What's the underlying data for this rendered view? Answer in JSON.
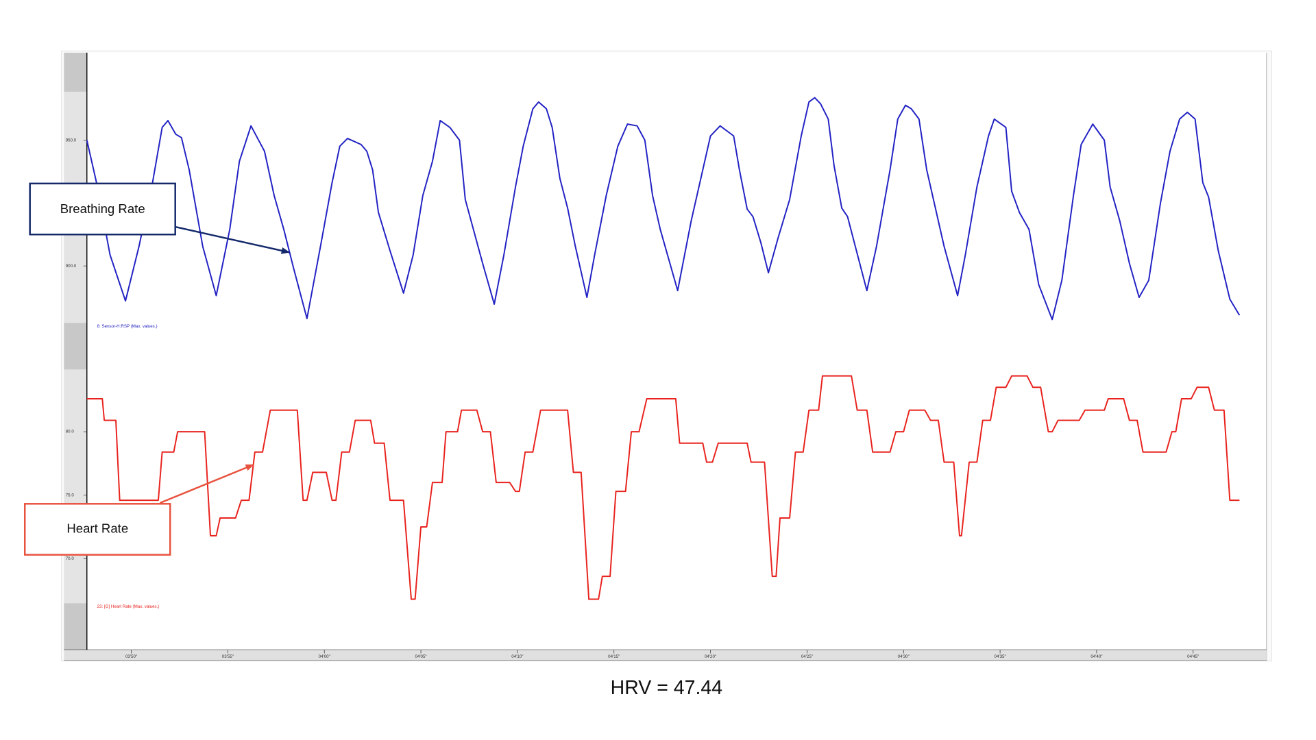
{
  "chart_data": [
    {
      "type": "line",
      "annotation": "Breathing Rate",
      "xlim": [
        227.7,
        288.8
      ],
      "ylim": [
        858.8,
        984.8
      ],
      "yticks": [
        {
          "value": 900,
          "label": "900.0"
        },
        {
          "value": 950,
          "label": "950.0"
        }
      ],
      "x": [
        227.7,
        228.2,
        228.9,
        229.7,
        230.4,
        231.1,
        231.6,
        231.9,
        232.3,
        232.6,
        233.0,
        233.7,
        234.4,
        235.1,
        235.6,
        236.2,
        236.9,
        237.4,
        237.9,
        238.4,
        239.1,
        239.8,
        240.4,
        240.8,
        241.2,
        241.9,
        242.2,
        242.5,
        242.8,
        243.4,
        244.1,
        244.6,
        245.1,
        245.6,
        246.0,
        246.5,
        247.0,
        247.3,
        248.2,
        248.8,
        249.3,
        249.9,
        250.3,
        250.8,
        251.1,
        251.5,
        251.8,
        252.2,
        252.6,
        253.0,
        253.6,
        254.0,
        254.6,
        255.2,
        255.7,
        256.2,
        256.6,
        257.0,
        257.4,
        257.9,
        258.3,
        259.0,
        259.5,
        260.0,
        260.5,
        261.2,
        261.5,
        261.9,
        262.2,
        262.6,
        263.0,
        263.5,
        264.1,
        264.7,
        265.1,
        265.4,
        265.7,
        266.1,
        266.4,
        266.8,
        267.1,
        267.5,
        268.1,
        268.6,
        269.3,
        269.7,
        270.1,
        270.4,
        270.8,
        271.2,
        271.6,
        272.1,
        272.8,
        273.2,
        273.8,
        274.4,
        274.7,
        275.3,
        275.6,
        276.0,
        276.5,
        277.0,
        277.7,
        278.2,
        278.8,
        279.2,
        279.8,
        280.4,
        280.7,
        281.2,
        281.7,
        282.2,
        282.7,
        283.3,
        283.8,
        284.3,
        284.7,
        285.1,
        285.5,
        285.8,
        286.3,
        286.9,
        287.4
      ],
      "series": [
        {
          "name": "8: Sensor-H:RSP (Max. values.)",
          "color": "#2222c4",
          "values": [
            950.0,
            933.1,
            904.4,
            886.1,
            907.8,
            933.1,
            955.1,
            957.8,
            952.4,
            951.0,
            938.2,
            907.8,
            888.2,
            914.5,
            941.6,
            955.7,
            945.6,
            928.0,
            914.5,
            899.3,
            879.1,
            907.8,
            933.1,
            947.6,
            950.7,
            948.3,
            945.6,
            938.2,
            921.3,
            906.1,
            889.2,
            904.4,
            928.0,
            941.6,
            957.8,
            955.1,
            950.0,
            926.4,
            901.0,
            884.8,
            904.4,
            931.4,
            947.6,
            962.5,
            965.2,
            962.5,
            955.1,
            934.8,
            923.0,
            907.8,
            887.5,
            904.4,
            928.0,
            947.6,
            956.4,
            955.7,
            950.0,
            928.0,
            914.5,
            901.0,
            890.2,
            917.9,
            934.8,
            951.7,
            955.7,
            951.7,
            938.2,
            922.6,
            919.6,
            909.5,
            897.3,
            911.1,
            926.4,
            951.7,
            965.2,
            966.9,
            964.5,
            958.4,
            939.9,
            923.0,
            919.6,
            907.8,
            890.2,
            907.8,
            938.2,
            958.4,
            963.9,
            962.5,
            958.4,
            938.2,
            924.7,
            907.8,
            888.2,
            904.4,
            931.4,
            951.7,
            958.4,
            955.1,
            929.7,
            921.3,
            914.5,
            892.6,
            878.7,
            894.3,
            928.0,
            948.3,
            956.4,
            950.0,
            931.4,
            917.9,
            901.0,
            887.5,
            894.3,
            924.7,
            945.6,
            958.4,
            961.1,
            958.4,
            933.1,
            927.4,
            906.1,
            886.8,
            880.4
          ]
        }
      ]
    },
    {
      "type": "line",
      "annotation": "Heart Rate",
      "xlim": [
        227.7,
        288.8
      ],
      "ylim": [
        62.8,
        84.9
      ],
      "yticks": [
        {
          "value": 70,
          "label": "70.0"
        },
        {
          "value": 75,
          "label": "75.0"
        },
        {
          "value": 80,
          "label": "80.0"
        }
      ],
      "xticks": [
        {
          "value": 230,
          "label": "03'50\""
        },
        {
          "value": 235,
          "label": "03'55\""
        },
        {
          "value": 240,
          "label": "04'00\""
        },
        {
          "value": 245,
          "label": "04'05\""
        },
        {
          "value": 250,
          "label": "04'10\""
        },
        {
          "value": 255,
          "label": "04'15\""
        },
        {
          "value": 260,
          "label": "04'20\""
        },
        {
          "value": 265,
          "label": "04'25\""
        },
        {
          "value": 270,
          "label": "04'30\""
        },
        {
          "value": 275,
          "label": "04'35\""
        },
        {
          "value": 280,
          "label": "04'40\""
        },
        {
          "value": 285,
          "label": "04'45\""
        }
      ],
      "x": [
        227.7,
        228.5,
        228.6,
        229.2,
        229.4,
        231.4,
        231.6,
        232.2,
        232.4,
        233.8,
        234.1,
        234.4,
        234.6,
        235.4,
        235.7,
        236.1,
        236.4,
        236.8,
        237.2,
        238.6,
        238.9,
        239.1,
        239.4,
        240.1,
        240.4,
        240.6,
        240.9,
        241.3,
        241.6,
        242.4,
        242.6,
        243.1,
        243.4,
        244.1,
        244.5,
        244.7,
        245.0,
        245.3,
        245.6,
        246.1,
        246.3,
        246.9,
        247.1,
        247.9,
        248.2,
        248.6,
        248.9,
        249.6,
        249.9,
        250.1,
        250.4,
        250.8,
        251.2,
        252.6,
        252.9,
        253.3,
        253.7,
        254.2,
        254.4,
        254.8,
        255.1,
        255.6,
        255.9,
        256.3,
        256.7,
        258.2,
        258.4,
        259.6,
        259.8,
        260.1,
        260.4,
        261.9,
        262.1,
        262.8,
        263.2,
        263.4,
        263.6,
        264.1,
        264.4,
        264.8,
        265.1,
        265.6,
        265.8,
        267.3,
        267.6,
        268.1,
        268.4,
        269.3,
        269.6,
        270.0,
        270.3,
        271.1,
        271.4,
        271.8,
        272.1,
        272.6,
        272.9,
        273.0,
        273.4,
        273.8,
        274.1,
        274.5,
        274.8,
        275.3,
        275.6,
        276.4,
        276.7,
        277.1,
        277.5,
        277.7,
        278.0,
        279.1,
        279.4,
        280.4,
        280.6,
        281.4,
        281.7,
        282.1,
        282.4,
        283.6,
        283.9,
        284.1,
        284.4,
        284.9,
        285.2,
        285.8,
        286.1,
        286.6,
        286.9,
        287.4
      ],
      "series": [
        {
          "name": "23: [G] Heart Rate (Max. values.)",
          "color": "#e8231e",
          "values": [
            82.6,
            82.6,
            80.9,
            80.9,
            74.6,
            74.6,
            78.4,
            78.4,
            80.0,
            80.0,
            71.8,
            71.8,
            73.2,
            73.2,
            74.6,
            74.6,
            78.4,
            78.4,
            81.7,
            81.7,
            74.6,
            74.6,
            76.8,
            76.8,
            74.6,
            74.6,
            78.4,
            78.4,
            80.9,
            80.9,
            79.1,
            79.1,
            74.6,
            74.6,
            66.8,
            66.8,
            72.5,
            72.5,
            76.0,
            76.0,
            80.0,
            80.0,
            81.7,
            81.7,
            80.0,
            80.0,
            76.0,
            76.0,
            75.3,
            75.3,
            78.4,
            78.4,
            81.7,
            81.7,
            76.8,
            76.8,
            66.8,
            66.8,
            68.6,
            68.6,
            75.3,
            75.3,
            80.0,
            80.0,
            82.6,
            82.6,
            79.1,
            79.1,
            77.6,
            77.6,
            79.1,
            79.1,
            77.6,
            77.6,
            68.6,
            68.6,
            73.2,
            73.2,
            78.4,
            78.4,
            81.7,
            81.7,
            84.4,
            84.4,
            81.7,
            81.7,
            78.4,
            78.4,
            80.0,
            80.0,
            81.7,
            81.7,
            80.9,
            80.9,
            77.6,
            77.6,
            71.8,
            71.8,
            77.6,
            77.6,
            80.9,
            80.9,
            83.5,
            83.5,
            84.4,
            84.4,
            83.5,
            83.5,
            80.0,
            80.0,
            80.9,
            80.9,
            81.7,
            81.7,
            82.6,
            82.6,
            80.9,
            80.9,
            78.4,
            78.4,
            80.0,
            80.0,
            82.6,
            82.6,
            83.5,
            83.5,
            81.7,
            81.7,
            74.6,
            74.6
          ]
        }
      ]
    }
  ],
  "caption": "HRV = 47.44"
}
